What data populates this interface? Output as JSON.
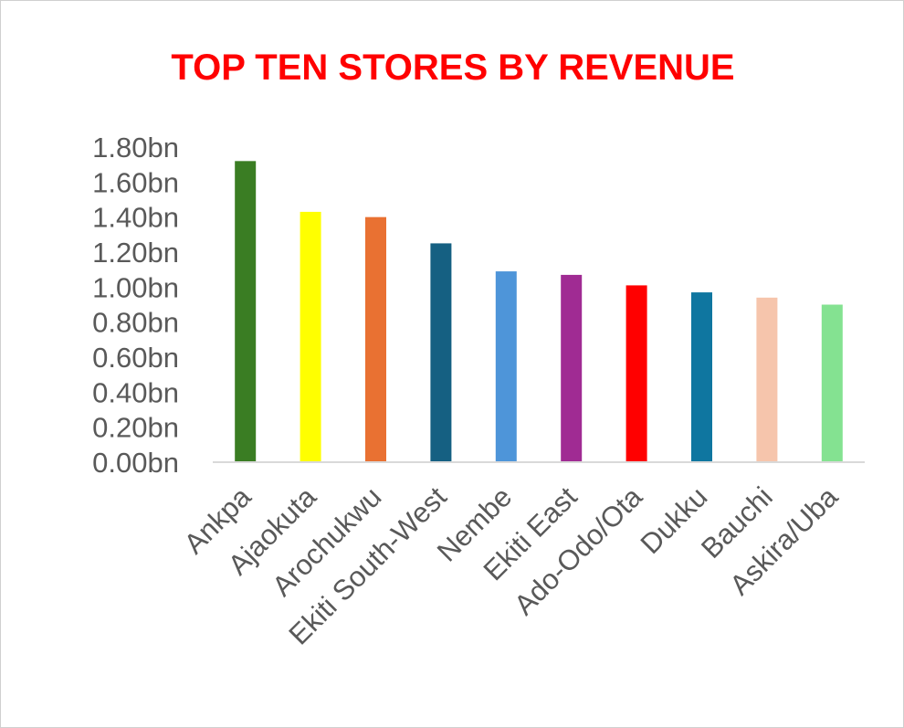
{
  "chart_data": {
    "type": "bar",
    "title": "TOP TEN STORES BY REVENUE",
    "xlabel": "",
    "ylabel": "",
    "categories": [
      "Ankpa",
      "Ajaokuta",
      "Arochukwu",
      "Ekiti South-West",
      "Nembe",
      "Ekiti East",
      "Ado-Odo/Ota",
      "Dukku",
      "Bauchi",
      "Askira/Uba"
    ],
    "values": [
      1.72,
      1.43,
      1.4,
      1.25,
      1.09,
      1.07,
      1.01,
      0.97,
      0.94,
      0.9
    ],
    "colors": [
      "#3a7d23",
      "#ffff00",
      "#e97132",
      "#156082",
      "#4e95d9",
      "#a02b93",
      "#ff0000",
      "#0f76a0",
      "#f6c5ac",
      "#84e291"
    ],
    "ylim": [
      0,
      1.8
    ],
    "yticks": [
      "0.00bn",
      "0.20bn",
      "0.40bn",
      "0.60bn",
      "0.80bn",
      "1.00bn",
      "1.20bn",
      "1.40bn",
      "1.60bn",
      "1.80bn"
    ],
    "grid": false,
    "legend": "none",
    "title_color": "#ff0000",
    "tick_color": "#595959"
  }
}
